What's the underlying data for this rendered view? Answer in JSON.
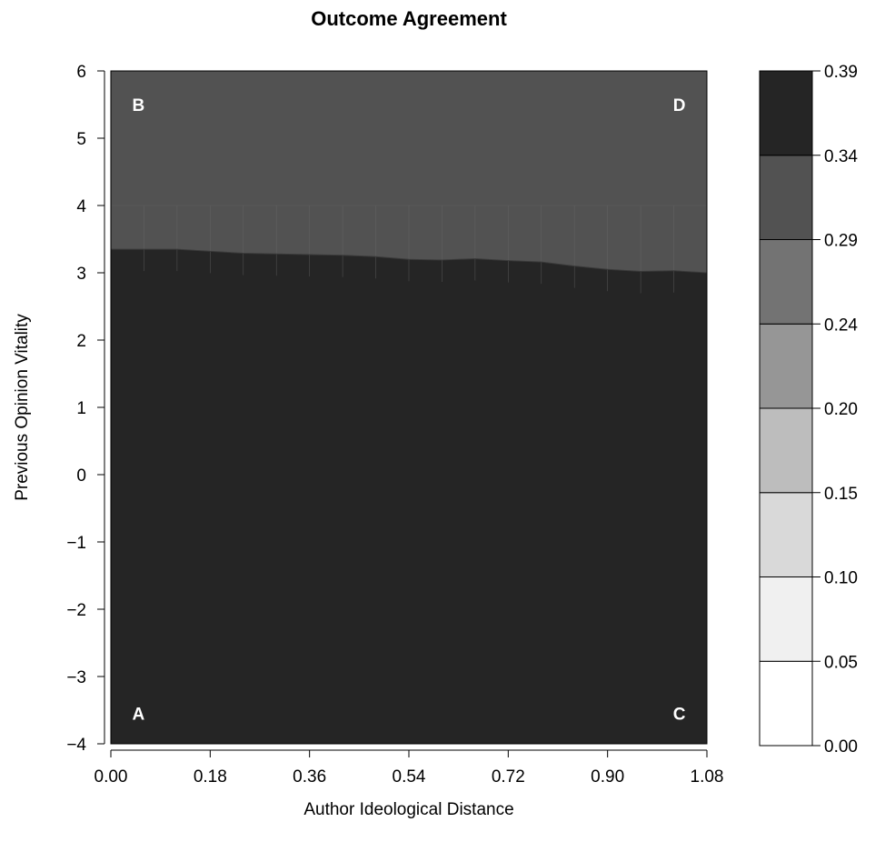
{
  "chart_data": {
    "type": "heatmap",
    "title": "Outcome Agreement",
    "xlabel": "Author Ideological Distance",
    "ylabel": "Previous Opinion Vitality",
    "xlim": [
      0.0,
      1.08
    ],
    "ylim": [
      -4,
      6
    ],
    "x_ticks": [
      "0.00",
      "0.18",
      "0.36",
      "0.54",
      "0.72",
      "0.90",
      "1.08"
    ],
    "y_ticks": [
      "−4",
      "−3",
      "−2",
      "−1",
      "0",
      "1",
      "2",
      "3",
      "4",
      "5",
      "6"
    ],
    "corner_labels": [
      {
        "label": "A",
        "x": 0.05,
        "y": -3.55
      },
      {
        "label": "B",
        "x": 0.05,
        "y": 5.5
      },
      {
        "label": "C",
        "x": 1.03,
        "y": -3.55
      },
      {
        "label": "D",
        "x": 1.03,
        "y": 5.5
      }
    ],
    "colorbar": {
      "levels": [
        "0.00",
        "0.05",
        "0.10",
        "0.15",
        "0.20",
        "0.24",
        "0.29",
        "0.34",
        "0.39"
      ],
      "colors": [
        "#ffffff",
        "#f0f0f0",
        "#d9d9d9",
        "#bdbdbd",
        "#969696",
        "#737373",
        "#525252",
        "#252525"
      ]
    },
    "regions": [
      {
        "level_range": [
          "0.34",
          "0.39"
        ],
        "color": "#252525",
        "y_range": [
          -4,
          "boundary_low"
        ]
      },
      {
        "level_range": [
          "0.29",
          "0.34"
        ],
        "color": "#525252",
        "y_range": [
          "boundary_low",
          6
        ]
      }
    ],
    "boundary_low": {
      "x": [
        0.0,
        0.06,
        0.12,
        0.18,
        0.24,
        0.3,
        0.36,
        0.42,
        0.48,
        0.54,
        0.6,
        0.66,
        0.72,
        0.78,
        0.84,
        0.9,
        0.96,
        1.02,
        1.08
      ],
      "y": [
        3.35,
        3.35,
        3.35,
        3.32,
        3.29,
        3.28,
        3.27,
        3.26,
        3.24,
        3.2,
        3.19,
        3.21,
        3.18,
        3.16,
        3.1,
        3.05,
        3.02,
        3.03,
        3.0
      ]
    },
    "grid_band": {
      "y_range": [
        3.0,
        4.0
      ],
      "x_step": 0.06
    },
    "grid": false,
    "legend_position": "right"
  }
}
